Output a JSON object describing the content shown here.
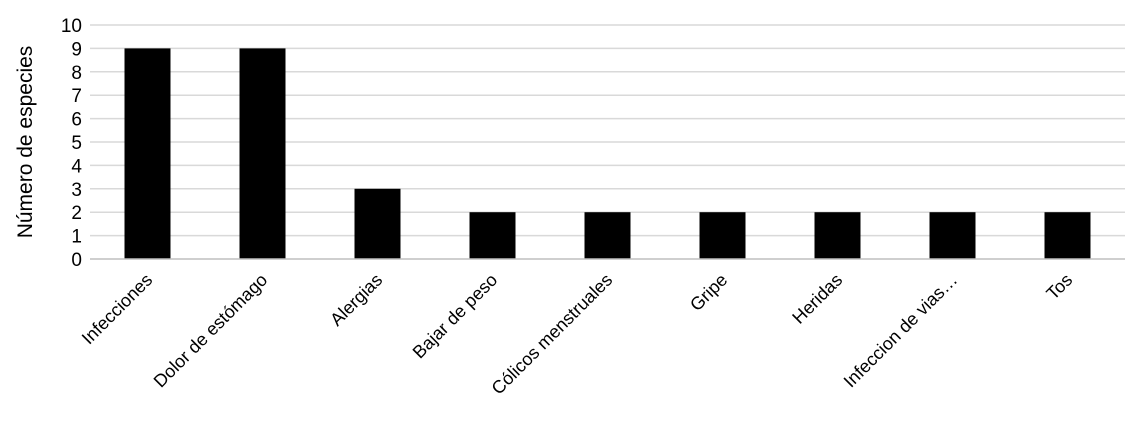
{
  "chart_data": {
    "type": "bar",
    "title": "",
    "xlabel": "",
    "ylabel": "Número de especies",
    "categories": [
      "Infecciones",
      "Dolor de estómago",
      "Alergias",
      "Bajar de peso",
      "Cólicos menstruales",
      "Gripe",
      "Heridas",
      "Infeccion de vias…",
      "Tos"
    ],
    "values": [
      9,
      9,
      3,
      2,
      2,
      2,
      2,
      2,
      2
    ],
    "ylim": [
      0,
      10
    ],
    "yticks": [
      "0",
      "1",
      "2",
      "3",
      "4",
      "5",
      "6",
      "7",
      "8",
      "9",
      "10"
    ],
    "grid": "horizontal",
    "legend": "none",
    "bar_color": "#000000",
    "grid_color": "#d9d9d9",
    "axis_color": "#bfbfbf"
  }
}
